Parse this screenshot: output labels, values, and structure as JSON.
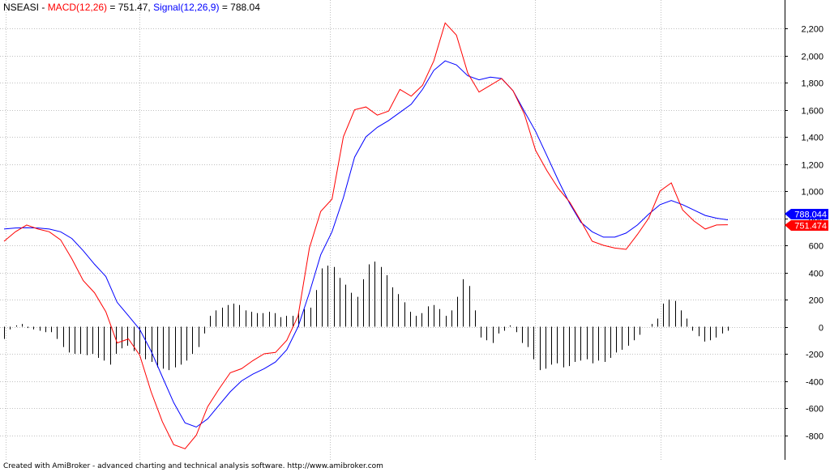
{
  "header": {
    "symbol": "NSEASI",
    "sep": " - ",
    "macd_label": "MACD(12,26)",
    "macd_value": " = 751.47, ",
    "signal_label": "Signal(12,26,9)",
    "signal_value": " = 788.04"
  },
  "footer": {
    "text": "Created with AmiBroker - advanced charting and technical analysis software. http://www.amibroker.com"
  },
  "colors": {
    "macd": "#ff0000",
    "signal": "#0000ff",
    "histogram": "#000000",
    "grid": "#c0c0c0"
  },
  "chart_data": {
    "type": "line",
    "ylim": [
      -950,
      2350
    ],
    "y_ticks": [
      2200,
      2000,
      1800,
      1600,
      1400,
      1200,
      1000,
      800,
      600,
      400,
      200,
      0,
      -200,
      -400,
      -600,
      -800
    ],
    "y_tick_labels": [
      "2,200",
      "2,000",
      "1,800",
      "1,600",
      "1,400",
      "1,200",
      "1,000",
      "800",
      "600",
      "400",
      "200",
      "0",
      "-200",
      "-400",
      "-600",
      "-800"
    ],
    "grid": true,
    "value_badges": [
      {
        "series": "Signal",
        "label": "788.044",
        "value": 788.04,
        "color": "#0000ff"
      },
      {
        "series": "MACD",
        "label": "751.474",
        "value": 751.47,
        "color": "#ff0000"
      }
    ],
    "series": [
      {
        "name": "MACD(12,26)",
        "color": "#ff0000",
        "values": [
          630,
          700,
          750,
          720,
          700,
          640,
          500,
          340,
          250,
          110,
          -120,
          -90,
          -210,
          -480,
          -700,
          -870,
          -900,
          -800,
          -590,
          -460,
          -340,
          -310,
          -250,
          -200,
          -190,
          -100,
          80,
          580,
          850,
          940,
          1400,
          1600,
          1620,
          1560,
          1590,
          1750,
          1700,
          1780,
          1960,
          2240,
          2150,
          1870,
          1730,
          1780,
          1830,
          1740,
          1570,
          1300,
          1150,
          1020,
          920,
          780,
          630,
          600,
          580,
          570,
          680,
          800,
          1000,
          1060,
          860,
          780,
          720,
          750,
          751.47
        ]
      },
      {
        "name": "Signal(12,26,9)",
        "color": "#0000ff",
        "values": [
          720,
          728,
          730,
          728,
          720,
          700,
          650,
          560,
          460,
          370,
          180,
          80,
          -20,
          -180,
          -370,
          -560,
          -710,
          -740,
          -680,
          -580,
          -480,
          -400,
          -350,
          -310,
          -260,
          -170,
          0,
          250,
          530,
          700,
          950,
          1250,
          1400,
          1470,
          1520,
          1580,
          1640,
          1750,
          1890,
          1960,
          1930,
          1850,
          1820,
          1840,
          1830,
          1740,
          1590,
          1440,
          1260,
          1080,
          910,
          770,
          700,
          660,
          660,
          690,
          750,
          830,
          900,
          930,
          900,
          860,
          820,
          800,
          788.04
        ]
      },
      {
        "name": "Histogram",
        "color": "#000000",
        "values": [
          -90,
          -20,
          10,
          20,
          -10,
          -20,
          -30,
          -40,
          -40,
          -90,
          -150,
          -190,
          -200,
          -200,
          -210,
          -200,
          -230,
          -250,
          -280,
          -200,
          -160,
          -140,
          -180,
          -200,
          -240,
          -260,
          -300,
          -310,
          -320,
          -300,
          -280,
          -250,
          -200,
          -150,
          -50,
          80,
          120,
          140,
          160,
          170,
          160,
          120,
          110,
          100,
          100,
          110,
          100,
          70,
          80,
          80,
          100,
          130,
          140,
          270,
          430,
          450,
          440,
          360,
          310,
          250,
          220,
          350,
          460,
          480,
          440,
          380,
          290,
          240,
          180,
          110,
          80,
          100,
          150,
          160,
          130,
          80,
          120,
          220,
          350,
          300,
          120,
          -80,
          -100,
          -120,
          -50,
          -30,
          10,
          -40,
          -120,
          -150,
          -240,
          -320,
          -310,
          -280,
          -270,
          -300,
          -290,
          -260,
          -250,
          -240,
          -270,
          -250,
          -260,
          -230,
          -190,
          -170,
          -140,
          -100,
          -60,
          0,
          20,
          60,
          170,
          200,
          190,
          120,
          60,
          -30,
          -70,
          -110,
          -100,
          -80,
          -50,
          -30
        ]
      }
    ]
  }
}
